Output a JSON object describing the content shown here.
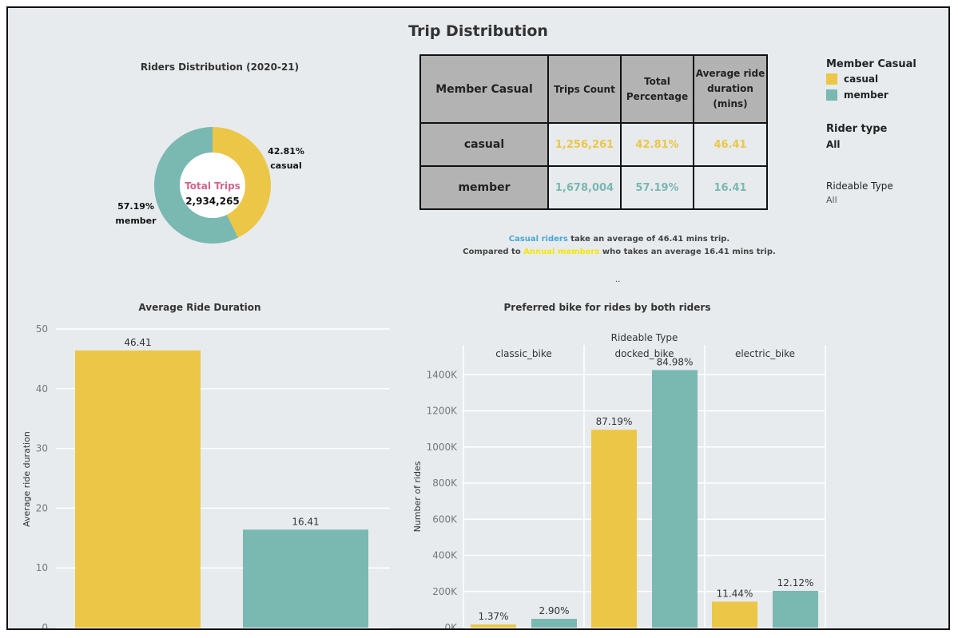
{
  "dashboard": {
    "title": "Trip Distribution"
  },
  "colors": {
    "casual": "#ecc646",
    "member": "#7ab8b2",
    "total_label": "#d0668d",
    "casual_riders_text": "#4aa6d6",
    "annual_members_text": "#f5e600"
  },
  "donut": {
    "title": "Riders Distribution (2020-21)",
    "center_label": "Total Trips",
    "center_value": "2,934,265",
    "casual_pct": "42.81%",
    "casual_label": "casual",
    "member_pct": "57.19%",
    "member_label": "member"
  },
  "summary_table": {
    "headers": {
      "member_casual": "Member Casual",
      "trips_count": "Trips Count",
      "total_pct_line1": "Total",
      "total_pct_line2": "Percentage",
      "avg_line1": "Average ride",
      "avg_line2": "duration",
      "avg_line3": "(mins)"
    },
    "rows": [
      {
        "type": "casual",
        "trips": "1,256,261",
        "pct": "42.81%",
        "avg": "46.41"
      },
      {
        "type": "member",
        "trips": "1,678,004",
        "pct": "57.19%",
        "avg": "16.41"
      }
    ]
  },
  "legend": {
    "title": "Member Casual",
    "items": [
      "casual",
      "member"
    ]
  },
  "filters": {
    "rider_type_label": "Rider type",
    "rider_type_value": "All",
    "rideable_label": "Rideable Type",
    "rideable_value": "All"
  },
  "caption": {
    "l1_a": "Casual riders",
    "l1_b": " take an average of  46.41  mins trip.",
    "l2_a": "Compared to ",
    "l2_b": " Annual members",
    "l2_c": "  who takes an average 16.41 mins trip.",
    "dots": ".."
  },
  "chart_data": [
    {
      "type": "bar",
      "title": "Average Ride Duration",
      "ylabel": "Average ride duration",
      "categories": [
        "casual",
        "member"
      ],
      "values": [
        46.41,
        16.41
      ],
      "data_labels": [
        "46.41",
        "16.41"
      ],
      "yticks": [
        0,
        10,
        20,
        30,
        40,
        50
      ],
      "ylim": [
        0,
        50
      ],
      "grid": true
    },
    {
      "type": "bar",
      "title": "Preferred bike for rides by both riders",
      "header": "Rideable Type",
      "ylabel": "Number of rides",
      "groups": [
        "classic_bike",
        "docked_bike",
        "electric_bike"
      ],
      "series": [
        {
          "name": "casual",
          "values": [
            17200,
            1095300,
            143700
          ],
          "labels": [
            "1.37%",
            "87.19%",
            "11.44%"
          ]
        },
        {
          "name": "member",
          "values": [
            48700,
            1426000,
            203400
          ],
          "labels": [
            "2.90%",
            "84.98%",
            "12.12%"
          ]
        }
      ],
      "yticks": [
        "0K",
        "200K",
        "400K",
        "600K",
        "800K",
        "1000K",
        "1200K",
        "1400K"
      ],
      "ylim": [
        0,
        1450000
      ],
      "grid": true
    }
  ]
}
